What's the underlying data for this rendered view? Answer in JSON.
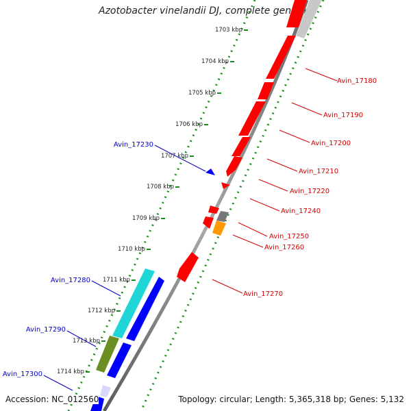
{
  "title": "Azotobacter vinelandii DJ, complete genome",
  "footer": {
    "accession": "Accession: NC_012560",
    "topology": "Topology: circular; Length: 5,365,318 bp; Genes: 5,132"
  },
  "colors": {
    "forward_label": "#d40000",
    "reverse_label": "#0000cc",
    "red": "#ff0000",
    "blue": "#0000ff",
    "cyan": "#1fd6d6",
    "olive": "#6b8e23",
    "gray": "#808080",
    "light_gray": "#c8c8c8",
    "orange": "#ff9900",
    "tick_green": "#1a8a1a"
  },
  "ticks": [
    "1703 kbp",
    "1704 kbp",
    "1705 kbp",
    "1706 kbp",
    "1707 kbp",
    "1708 kbp",
    "1709 kbp",
    "1710 kbp",
    "1711 kbp",
    "1712 kbp",
    "1713 kbp",
    "1714 kbp"
  ],
  "forward_labels": [
    "Avin_17180",
    "Avin_17190",
    "Avin_17200",
    "Avin_17210",
    "Avin_17220",
    "Avin_17240",
    "Avin_17250",
    "Avin_17260",
    "Avin_17270"
  ],
  "reverse_labels": [
    "Avin_17230",
    "Avin_17280",
    "Avin_17290",
    "Avin_17300"
  ]
}
